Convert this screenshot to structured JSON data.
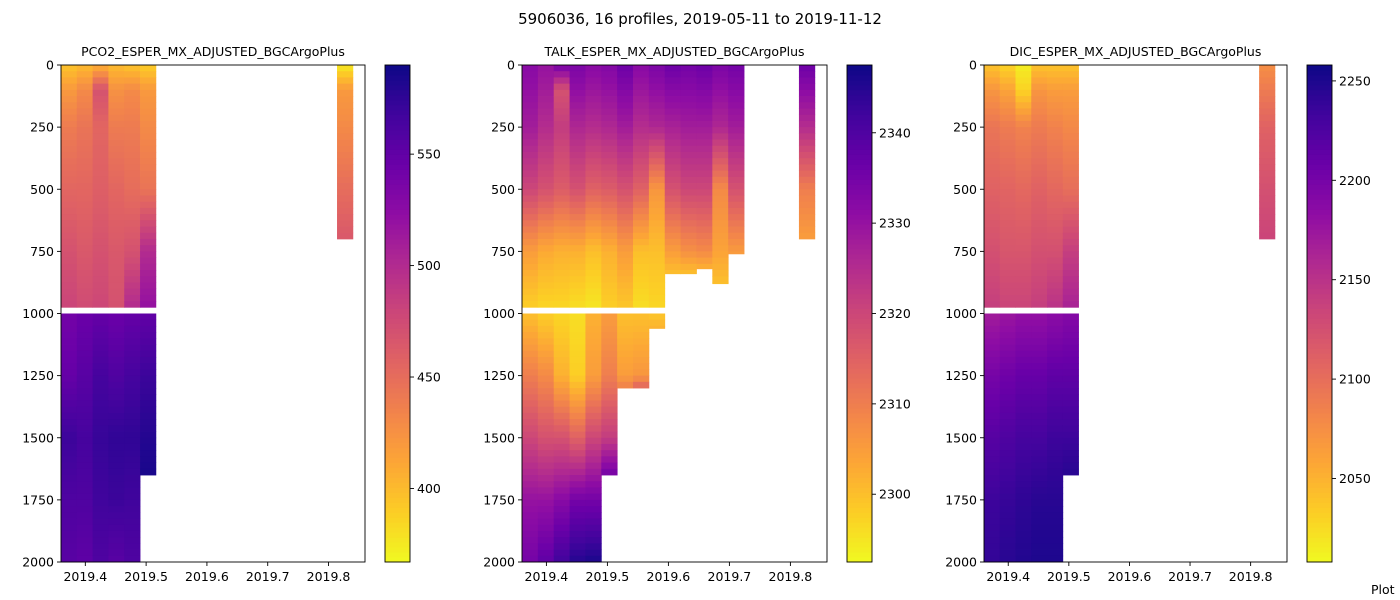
{
  "figure": {
    "title": "5906036, 16 profiles, 2019-05-11 to 2019-11-12",
    "corner_text": "Plot"
  },
  "chart_data": [
    {
      "type": "heatmap",
      "title": "PCO2_ESPER_MX_ADJUSTED_BGCArgoPlus",
      "xlabel": "",
      "ylabel": "",
      "colormap": "plasma_r",
      "xlim": [
        2019.36,
        2019.86
      ],
      "ylim": [
        2000,
        0
      ],
      "y_inverted": true,
      "x_ticks": [
        2019.4,
        2019.5,
        2019.6,
        2019.7,
        2019.8
      ],
      "x_tick_labels": [
        "2019.4",
        "2019.5",
        "2019.6",
        "2019.7",
        "2019.8"
      ],
      "y_ticks": [
        0,
        250,
        500,
        750,
        1000,
        1250,
        1500,
        1750,
        2000
      ],
      "y_tick_labels": [
        "0",
        "250",
        "500",
        "750",
        "1000",
        "1250",
        "1500",
        "1750",
        "2000"
      ],
      "colorbar": {
        "range": [
          367,
          590
        ],
        "ticks": [
          400,
          450,
          500,
          550
        ],
        "tick_labels": [
          "400",
          "450",
          "500",
          "550"
        ]
      },
      "grid": false,
      "gap_depth": [
        975,
        1000
      ],
      "profiles": [
        {
          "x0": 2019.36,
          "x1": 2019.386,
          "max_depth": 2000,
          "depths": [
            0,
            100,
            250,
            500,
            750,
            975,
            1000,
            1250,
            1500,
            1750,
            2000
          ],
          "values": [
            395,
            420,
            440,
            455,
            470,
            480,
            540,
            548,
            570,
            560,
            555
          ]
        },
        {
          "x0": 2019.386,
          "x1": 2019.412,
          "max_depth": 2000,
          "depths": [
            0,
            100,
            250,
            500,
            750,
            975,
            1000,
            1250,
            1500,
            1750,
            2000
          ],
          "values": [
            400,
            430,
            445,
            455,
            465,
            475,
            545,
            555,
            565,
            560,
            552
          ]
        },
        {
          "x0": 2019.412,
          "x1": 2019.438,
          "max_depth": 2000,
          "depths": [
            0,
            100,
            250,
            500,
            750,
            975,
            1000,
            1250,
            1500,
            1750,
            2000
          ],
          "values": [
            405,
            470,
            455,
            460,
            470,
            478,
            548,
            565,
            572,
            568,
            560
          ]
        },
        {
          "x0": 2019.438,
          "x1": 2019.464,
          "max_depth": 2000,
          "depths": [
            0,
            100,
            250,
            500,
            750,
            975,
            1000,
            1250,
            1500,
            1750,
            2000
          ],
          "values": [
            400,
            425,
            440,
            455,
            465,
            470,
            545,
            560,
            575,
            570,
            555
          ]
        },
        {
          "x0": 2019.464,
          "x1": 2019.49,
          "max_depth": 2000,
          "depths": [
            0,
            100,
            250,
            500,
            750,
            975,
            1000,
            1250,
            1500,
            1750,
            2000
          ],
          "values": [
            395,
            430,
            440,
            450,
            470,
            500,
            548,
            565,
            575,
            568,
            560
          ]
        },
        {
          "x0": 2019.49,
          "x1": 2019.516,
          "max_depth": 1650,
          "depths": [
            0,
            100,
            250,
            500,
            750,
            975,
            1000,
            1250,
            1500,
            1650
          ],
          "values": [
            390,
            420,
            430,
            445,
            500,
            520,
            550,
            570,
            580,
            585
          ]
        },
        {
          "x0": 2019.814,
          "x1": 2019.84,
          "max_depth": 700,
          "depths": [
            0,
            100,
            250,
            500,
            700
          ],
          "values": [
            375,
            420,
            430,
            450,
            465
          ]
        }
      ]
    },
    {
      "type": "heatmap",
      "title": "TALK_ESPER_MX_ADJUSTED_BGCArgoPlus",
      "xlabel": "",
      "ylabel": "",
      "colormap": "plasma_r",
      "xlim": [
        2019.36,
        2019.86
      ],
      "ylim": [
        2000,
        0
      ],
      "y_inverted": true,
      "x_ticks": [
        2019.4,
        2019.5,
        2019.6,
        2019.7,
        2019.8
      ],
      "x_tick_labels": [
        "2019.4",
        "2019.5",
        "2019.6",
        "2019.7",
        "2019.8"
      ],
      "y_ticks": [
        0,
        250,
        500,
        750,
        1000,
        1250,
        1500,
        1750,
        2000
      ],
      "y_tick_labels": [
        "0",
        "250",
        "500",
        "750",
        "1000",
        "1250",
        "1500",
        "1750",
        "2000"
      ],
      "colorbar": {
        "range": [
          2292.5,
          2347.5
        ],
        "ticks": [
          2300,
          2310,
          2320,
          2330,
          2340
        ],
        "tick_labels": [
          "2300",
          "2310",
          "2320",
          "2330",
          "2340"
        ]
      },
      "grid": false,
      "gap_depth": [
        975,
        1000
      ],
      "profiles": [
        {
          "x0": 2019.36,
          "x1": 2019.386,
          "max_depth": 2000,
          "depths": [
            0,
            250,
            500,
            750,
            975,
            1000,
            1250,
            1500,
            1750,
            2000
          ],
          "values": [
            2332,
            2328,
            2320,
            2305,
            2298,
            2300,
            2310,
            2320,
            2330,
            2335
          ]
        },
        {
          "x0": 2019.386,
          "x1": 2019.412,
          "max_depth": 2000,
          "depths": [
            0,
            250,
            500,
            750,
            975,
            1000,
            1250,
            1500,
            1750,
            2000
          ],
          "values": [
            2330,
            2325,
            2318,
            2303,
            2297,
            2298,
            2308,
            2318,
            2330,
            2338
          ]
        },
        {
          "x0": 2019.412,
          "x1": 2019.438,
          "max_depth": 2000,
          "depths": [
            0,
            100,
            250,
            500,
            750,
            975,
            1000,
            1250,
            1500,
            1750,
            2000
          ],
          "values": [
            2335,
            2318,
            2322,
            2316,
            2302,
            2297,
            2297,
            2302,
            2318,
            2332,
            2342
          ]
        },
        {
          "x0": 2019.438,
          "x1": 2019.464,
          "max_depth": 2000,
          "depths": [
            0,
            250,
            500,
            750,
            975,
            1000,
            1250,
            1500,
            1750,
            2000
          ],
          "values": [
            2334,
            2326,
            2318,
            2302,
            2296,
            2296,
            2298,
            2315,
            2335,
            2345
          ]
        },
        {
          "x0": 2019.464,
          "x1": 2019.49,
          "max_depth": 2000,
          "depths": [
            0,
            250,
            500,
            750,
            975,
            1000,
            1250,
            1500,
            1750,
            2000
          ],
          "values": [
            2332,
            2325,
            2315,
            2300,
            2295,
            2302,
            2305,
            2320,
            2335,
            2346
          ]
        },
        {
          "x0": 2019.49,
          "x1": 2019.516,
          "max_depth": 1650,
          "depths": [
            0,
            250,
            500,
            750,
            975,
            1000,
            1250,
            1500,
            1650
          ],
          "values": [
            2333,
            2326,
            2316,
            2302,
            2298,
            2305,
            2310,
            2322,
            2335
          ]
        },
        {
          "x0": 2019.516,
          "x1": 2019.542,
          "max_depth": 1300,
          "depths": [
            0,
            250,
            500,
            750,
            975,
            1000,
            1250,
            1300
          ],
          "values": [
            2336,
            2328,
            2318,
            2305,
            2299,
            2300,
            2305,
            2310
          ]
        },
        {
          "x0": 2019.542,
          "x1": 2019.568,
          "max_depth": 1300,
          "depths": [
            0,
            250,
            500,
            750,
            975,
            1000,
            1250,
            1300
          ],
          "values": [
            2332,
            2325,
            2315,
            2300,
            2296,
            2300,
            2306,
            2315
          ]
        },
        {
          "x0": 2019.568,
          "x1": 2019.594,
          "max_depth": 1060,
          "depths": [
            0,
            250,
            500,
            750,
            975,
            1000,
            1060
          ],
          "values": [
            2334,
            2326,
            2306,
            2300,
            2297,
            2299,
            2302
          ]
        },
        {
          "x0": 2019.594,
          "x1": 2019.62,
          "max_depth": 840,
          "depths": [
            0,
            250,
            500,
            750,
            840
          ],
          "values": [
            2336,
            2327,
            2318,
            2305,
            2300
          ]
        },
        {
          "x0": 2019.62,
          "x1": 2019.646,
          "max_depth": 840,
          "depths": [
            0,
            250,
            500,
            750,
            840
          ],
          "values": [
            2335,
            2328,
            2320,
            2307,
            2300
          ]
        },
        {
          "x0": 2019.646,
          "x1": 2019.672,
          "max_depth": 820,
          "depths": [
            0,
            250,
            500,
            750,
            820
          ],
          "values": [
            2336,
            2328,
            2320,
            2308,
            2302
          ]
        },
        {
          "x0": 2019.672,
          "x1": 2019.698,
          "max_depth": 880,
          "depths": [
            0,
            250,
            500,
            750,
            880
          ],
          "values": [
            2334,
            2326,
            2308,
            2304,
            2300
          ]
        },
        {
          "x0": 2019.698,
          "x1": 2019.724,
          "max_depth": 760,
          "depths": [
            0,
            250,
            500,
            760
          ],
          "values": [
            2335,
            2328,
            2318,
            2305
          ]
        },
        {
          "x0": 2019.814,
          "x1": 2019.84,
          "max_depth": 700,
          "depths": [
            0,
            250,
            500,
            700
          ],
          "values": [
            2336,
            2325,
            2310,
            2305
          ]
        }
      ]
    },
    {
      "type": "heatmap",
      "title": "DIC_ESPER_MX_ADJUSTED_BGCArgoPlus",
      "xlabel": "",
      "ylabel": "",
      "colormap": "plasma_r",
      "xlim": [
        2019.36,
        2019.86
      ],
      "ylim": [
        2000,
        0
      ],
      "y_inverted": true,
      "x_ticks": [
        2019.4,
        2019.5,
        2019.6,
        2019.7,
        2019.8
      ],
      "x_tick_labels": [
        "2019.4",
        "2019.5",
        "2019.6",
        "2019.7",
        "2019.8"
      ],
      "y_ticks": [
        0,
        250,
        500,
        750,
        1000,
        1250,
        1500,
        1750,
        2000
      ],
      "y_tick_labels": [
        "0",
        "250",
        "500",
        "750",
        "1000",
        "1250",
        "1500",
        "1750",
        "2000"
      ],
      "colorbar": {
        "range": [
          2008,
          2258
        ],
        "ticks": [
          2050,
          2100,
          2150,
          2200,
          2250
        ],
        "tick_labels": [
          "2050",
          "2100",
          "2150",
          "2200",
          "2250"
        ]
      },
      "grid": false,
      "gap_depth": [
        975,
        1000
      ],
      "profiles": [
        {
          "x0": 2019.36,
          "x1": 2019.386,
          "max_depth": 2000,
          "depths": [
            0,
            100,
            250,
            500,
            750,
            975,
            1000,
            1250,
            1500,
            1750,
            2000
          ],
          "values": [
            2040,
            2070,
            2095,
            2110,
            2125,
            2140,
            2170,
            2200,
            2220,
            2235,
            2240
          ]
        },
        {
          "x0": 2019.386,
          "x1": 2019.412,
          "max_depth": 2000,
          "depths": [
            0,
            100,
            250,
            500,
            750,
            975,
            1000,
            1250,
            1500,
            1750,
            2000
          ],
          "values": [
            2030,
            2060,
            2090,
            2108,
            2120,
            2135,
            2175,
            2205,
            2225,
            2238,
            2245
          ]
        },
        {
          "x0": 2019.412,
          "x1": 2019.438,
          "max_depth": 2000,
          "depths": [
            0,
            100,
            250,
            500,
            750,
            975,
            1000,
            1250,
            1500,
            1750,
            2000
          ],
          "values": [
            2015,
            2030,
            2085,
            2105,
            2120,
            2135,
            2180,
            2210,
            2230,
            2242,
            2248
          ]
        },
        {
          "x0": 2019.438,
          "x1": 2019.464,
          "max_depth": 2000,
          "depths": [
            0,
            100,
            250,
            500,
            750,
            975,
            1000,
            1250,
            1500,
            1750,
            2000
          ],
          "values": [
            2040,
            2070,
            2090,
            2110,
            2125,
            2140,
            2180,
            2210,
            2230,
            2245,
            2250
          ]
        },
        {
          "x0": 2019.464,
          "x1": 2019.49,
          "max_depth": 2000,
          "depths": [
            0,
            100,
            250,
            500,
            750,
            975,
            1000,
            1250,
            1500,
            1750,
            2000
          ],
          "values": [
            2040,
            2065,
            2085,
            2105,
            2125,
            2150,
            2185,
            2215,
            2235,
            2245,
            2250
          ]
        },
        {
          "x0": 2019.49,
          "x1": 2019.516,
          "max_depth": 1650,
          "depths": [
            0,
            100,
            250,
            500,
            750,
            975,
            1000,
            1250,
            1500,
            1650
          ],
          "values": [
            2040,
            2065,
            2080,
            2100,
            2140,
            2165,
            2190,
            2215,
            2235,
            2245
          ]
        },
        {
          "x0": 2019.814,
          "x1": 2019.84,
          "max_depth": 700,
          "depths": [
            0,
            100,
            250,
            500,
            700
          ],
          "values": [
            2075,
            2090,
            2110,
            2125,
            2135
          ]
        }
      ]
    }
  ]
}
